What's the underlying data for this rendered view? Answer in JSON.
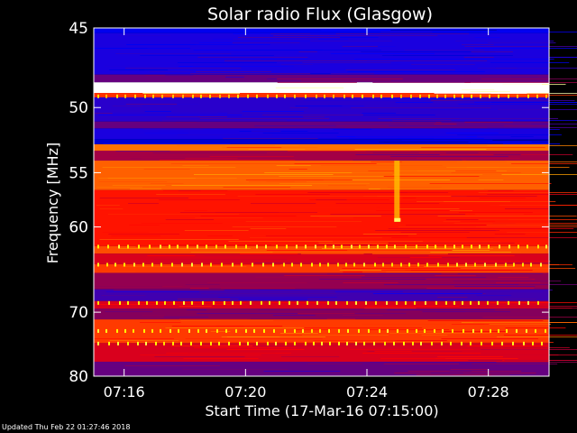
{
  "chart_data": {
    "type": "heatmap",
    "title": "Solar radio Flux (Glasgow)",
    "xlabel": "Start Time (17-Mar-16 07:15:00)",
    "ylabel": "Frequency [MHz]",
    "x_ticks": [
      "07:16",
      "07:20",
      "07:24",
      "07:28"
    ],
    "x_tick_minutes": [
      1,
      5,
      9,
      13
    ],
    "xlim_minutes": [
      0,
      15
    ],
    "y_ticks": [
      45,
      50,
      55,
      60,
      70,
      80
    ],
    "ylim": [
      45,
      80
    ],
    "y_scale": "reciprocal",
    "colormap": [
      "#000060",
      "#0000ff",
      "#800060",
      "#ff0000",
      "#ffa000",
      "#ffff00",
      "#ffffff"
    ],
    "bands": [
      {
        "f0": 45.0,
        "f1": 45.3,
        "level": 0.15
      },
      {
        "f0": 45.3,
        "f1": 47.8,
        "level": 0.2
      },
      {
        "f0": 47.8,
        "f1": 48.3,
        "level": 0.3
      },
      {
        "f0": 48.3,
        "f1": 49.0,
        "level": 1.0
      },
      {
        "f0": 49.0,
        "f1": 49.3,
        "level": 0.55
      },
      {
        "f0": 49.3,
        "f1": 51.0,
        "level": 0.22
      },
      {
        "f0": 51.0,
        "f1": 51.5,
        "level": 0.3
      },
      {
        "f0": 51.5,
        "f1": 52.3,
        "level": 0.2
      },
      {
        "f0": 52.3,
        "f1": 52.7,
        "level": 0.12
      },
      {
        "f0": 52.7,
        "f1": 53.2,
        "level": 0.62
      },
      {
        "f0": 53.2,
        "f1": 54.0,
        "level": 0.38
      },
      {
        "f0": 54.0,
        "f1": 56.5,
        "level": 0.6
      },
      {
        "f0": 56.5,
        "f1": 62.0,
        "level": 0.52
      },
      {
        "f0": 62.0,
        "f1": 62.8,
        "level": 0.58
      },
      {
        "f0": 62.8,
        "f1": 64.0,
        "level": 0.45
      },
      {
        "f0": 64.0,
        "f1": 65.0,
        "level": 0.56
      },
      {
        "f0": 65.0,
        "f1": 67.0,
        "level": 0.36
      },
      {
        "f0": 67.0,
        "f1": 68.5,
        "level": 0.25
      },
      {
        "f0": 68.5,
        "f1": 69.5,
        "level": 0.45
      },
      {
        "f0": 69.5,
        "f1": 71.0,
        "level": 0.34
      },
      {
        "f0": 71.0,
        "f1": 74.5,
        "level": 0.56
      },
      {
        "f0": 74.5,
        "f1": 77.5,
        "level": 0.45
      },
      {
        "f0": 77.5,
        "f1": 80.0,
        "level": 0.3
      }
    ],
    "dotted_lines_mhz": [
      49.2,
      62.0,
      64.0,
      68.7,
      72.6,
      74.5
    ],
    "burst": {
      "minute": 9.9,
      "f0": 54.0,
      "f1": 59.5,
      "peak_mhz": 59.3
    }
  },
  "footer": {
    "updated": "Updated Thu Feb 22 01:27:46 2018"
  }
}
